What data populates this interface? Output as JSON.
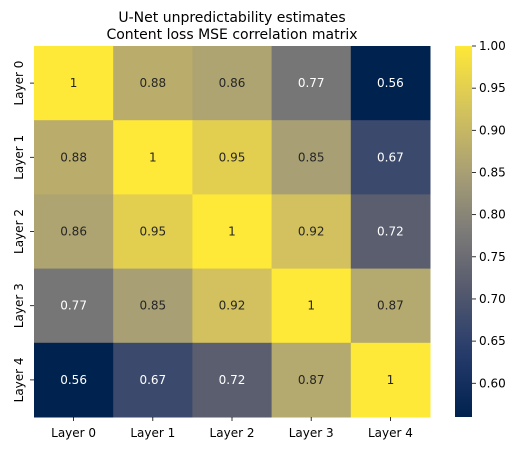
{
  "chart_data": {
    "type": "heatmap",
    "title": "U-Net unpredictability estimates",
    "subtitle": "Content loss MSE correlation matrix",
    "row_labels": [
      "Layer 0",
      "Layer 1",
      "Layer 2",
      "Layer 3",
      "Layer 4"
    ],
    "col_labels": [
      "Layer 0",
      "Layer 1",
      "Layer 2",
      "Layer 3",
      "Layer 4"
    ],
    "values": [
      [
        1,
        0.88,
        0.86,
        0.77,
        0.56
      ],
      [
        0.88,
        1,
        0.95,
        0.85,
        0.67
      ],
      [
        0.86,
        0.95,
        1,
        0.92,
        0.72
      ],
      [
        0.77,
        0.85,
        0.92,
        1,
        0.87
      ],
      [
        0.56,
        0.67,
        0.72,
        0.87,
        1
      ]
    ],
    "cell_labels": [
      [
        "1",
        "0.88",
        "0.86",
        "0.77",
        "0.56"
      ],
      [
        "0.88",
        "1",
        "0.95",
        "0.85",
        "0.67"
      ],
      [
        "0.86",
        "0.95",
        "1",
        "0.92",
        "0.72"
      ],
      [
        "0.77",
        "0.85",
        "0.92",
        "1",
        "0.87"
      ],
      [
        "0.56",
        "0.67",
        "0.72",
        "0.87",
        "1"
      ]
    ],
    "colormap": "cividis",
    "vmin": 0.56,
    "vmax": 1.0,
    "colorbar_ticks": [
      "0.60",
      "0.65",
      "0.70",
      "0.75",
      "0.80",
      "0.85",
      "0.90",
      "0.95",
      "1.00"
    ],
    "colors": {
      "low": "#00224e",
      "high": "#fee838"
    }
  }
}
